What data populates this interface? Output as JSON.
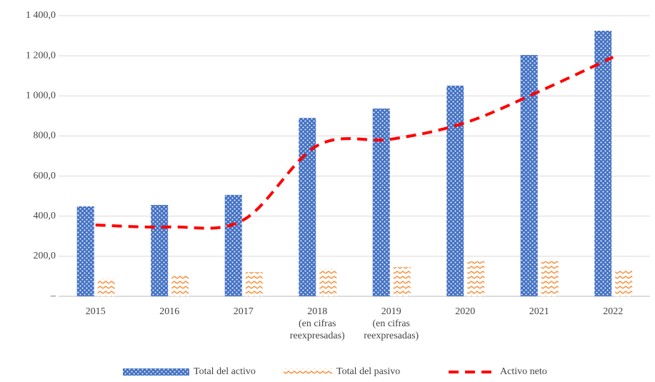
{
  "chart_data": {
    "type": "bar",
    "categories": [
      "2015",
      "2016",
      "2017",
      "2018\n(en cifras\nreexpresadas)",
      "2019\n(en cifras\nreexpresadas)",
      "2020",
      "2021",
      "2022"
    ],
    "series": [
      {
        "name": "Total del activo",
        "color": "#4472c4",
        "values": [
          449,
          456,
          506,
          890,
          937,
          1051,
          1204,
          1325
        ]
      },
      {
        "name": "Total del pasivo",
        "color": "#f79646",
        "values": [
          89,
          110,
          121,
          139,
          146,
          175,
          175,
          135
        ]
      },
      {
        "name": "Activo neto",
        "type": "line",
        "color": "#ff0000",
        "values": [
          356,
          346,
          381,
          752,
          784,
          866,
          1022,
          1193
        ]
      }
    ],
    "ylim": [
      0,
      1400
    ],
    "yticks": [
      {
        "value": 0,
        "label": "–"
      },
      {
        "value": 200,
        "label": "200,0"
      },
      {
        "value": 400,
        "label": "400,0"
      },
      {
        "value": 600,
        "label": "600,0"
      },
      {
        "value": 800,
        "label": "800,0"
      },
      {
        "value": 1000,
        "label": "1 000,0"
      },
      {
        "value": 1200,
        "label": "1 200,0"
      },
      {
        "value": 1400,
        "label": "1 400,0"
      }
    ],
    "grid": true,
    "legend": "bottom"
  }
}
